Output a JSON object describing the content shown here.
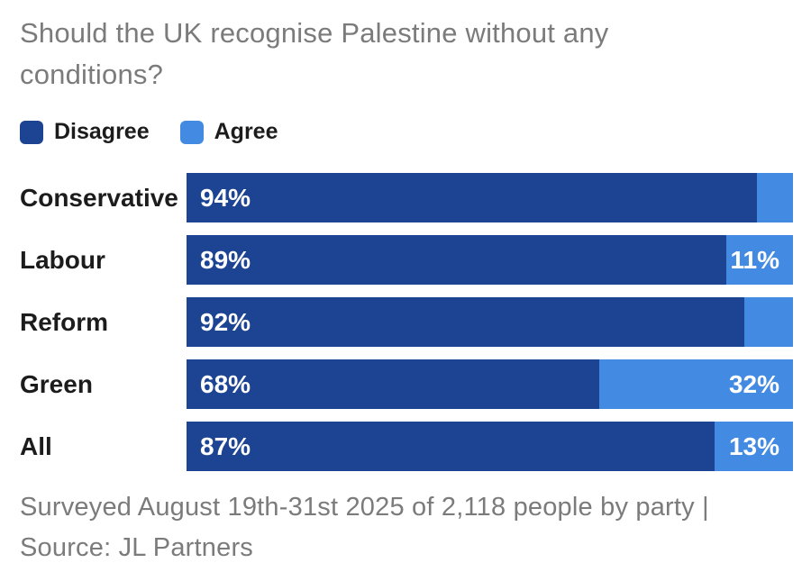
{
  "title": "Should the UK recognise Palestine without any conditions?",
  "legend": [
    {
      "label": "Disagree",
      "color": "#1d4493"
    },
    {
      "label": "Agree",
      "color": "#428ae2"
    }
  ],
  "footer": {
    "text": "Surveyed August 19th-31st 2025 of 2,118 people by party | Source: JL Partners"
  },
  "colors": {
    "disagree": "#1d4493",
    "agree": "#428ae2",
    "title_text": "#7b7b7b",
    "footer_text": "#7b7b7b",
    "category_text": "#1c1c1c",
    "bar_value_text": "#ffffff",
    "background": "#ffffff"
  },
  "chart_data": {
    "type": "bar",
    "orientation": "horizontal",
    "stacked": true,
    "title": "Should the UK recognise Palestine without any conditions?",
    "categories": [
      "Conservative",
      "Labour",
      "Reform",
      "Green",
      "All"
    ],
    "series": [
      {
        "name": "Disagree",
        "color": "#1d4493",
        "values": [
          94,
          89,
          92,
          68,
          87
        ],
        "labels": [
          "94%",
          "89%",
          "92%",
          "68%",
          "87%"
        ]
      },
      {
        "name": "Agree",
        "color": "#428ae2",
        "values": [
          6,
          11,
          8,
          32,
          13
        ],
        "labels": [
          "",
          "11%",
          "",
          "32%",
          "13%"
        ]
      }
    ],
    "value_suffix": "%",
    "xlim": [
      0,
      100
    ],
    "grid": false,
    "legend_position": "top",
    "source_note": "Surveyed August 19th-31st 2025 of 2,118 people by party | Source: JL Partners"
  }
}
